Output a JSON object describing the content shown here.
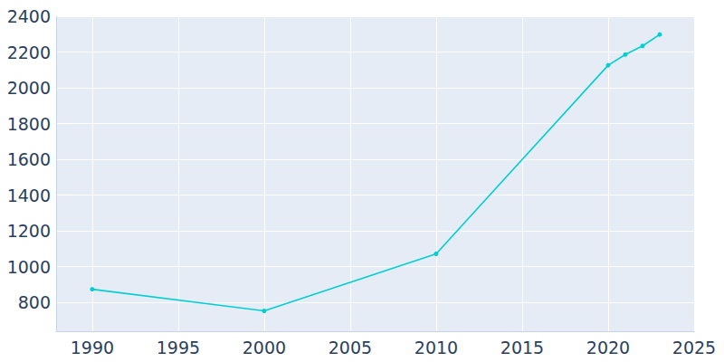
{
  "chart_data": {
    "type": "line",
    "x": [
      1990,
      2000,
      2010,
      2020,
      2021,
      2022,
      2023
    ],
    "values": [
      873,
      752,
      1071,
      2126,
      2186,
      2234,
      2298
    ],
    "color": "#00ced1",
    "marker": "circle",
    "xlim": [
      1987.9,
      2025
    ],
    "xticks": [
      1990,
      1995,
      2000,
      2005,
      2010,
      2015,
      2020,
      2025
    ],
    "ylim": [
      638,
      2400
    ],
    "yticks": [
      800,
      1000,
      1200,
      1400,
      1600,
      1800,
      2000,
      2200,
      2400
    ],
    "grid": true
  }
}
